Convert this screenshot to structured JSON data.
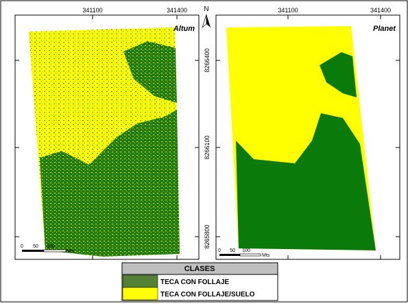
{
  "map": {
    "panels": [
      {
        "title": "Altum",
        "x_labels": [
          "341100",
          "341400"
        ],
        "scale_labels": [
          "0",
          "50",
          "100"
        ],
        "scale_unit": "Mts"
      },
      {
        "title": "Planet",
        "x_labels": [
          "341100",
          "341400"
        ],
        "scale_labels": [
          "0",
          "50",
          "100"
        ],
        "scale_unit": "Mts"
      }
    ],
    "y_labels": [
      "8266400",
      "8266100",
      "8265800"
    ],
    "north": "N"
  },
  "legend": {
    "title": "CLASES",
    "items": [
      {
        "label": "TECA CON FOLLAJE",
        "color": "#538135"
      },
      {
        "label": "TECA CON FOLLAJE/SUELO",
        "color": "#ffff00"
      }
    ]
  }
}
